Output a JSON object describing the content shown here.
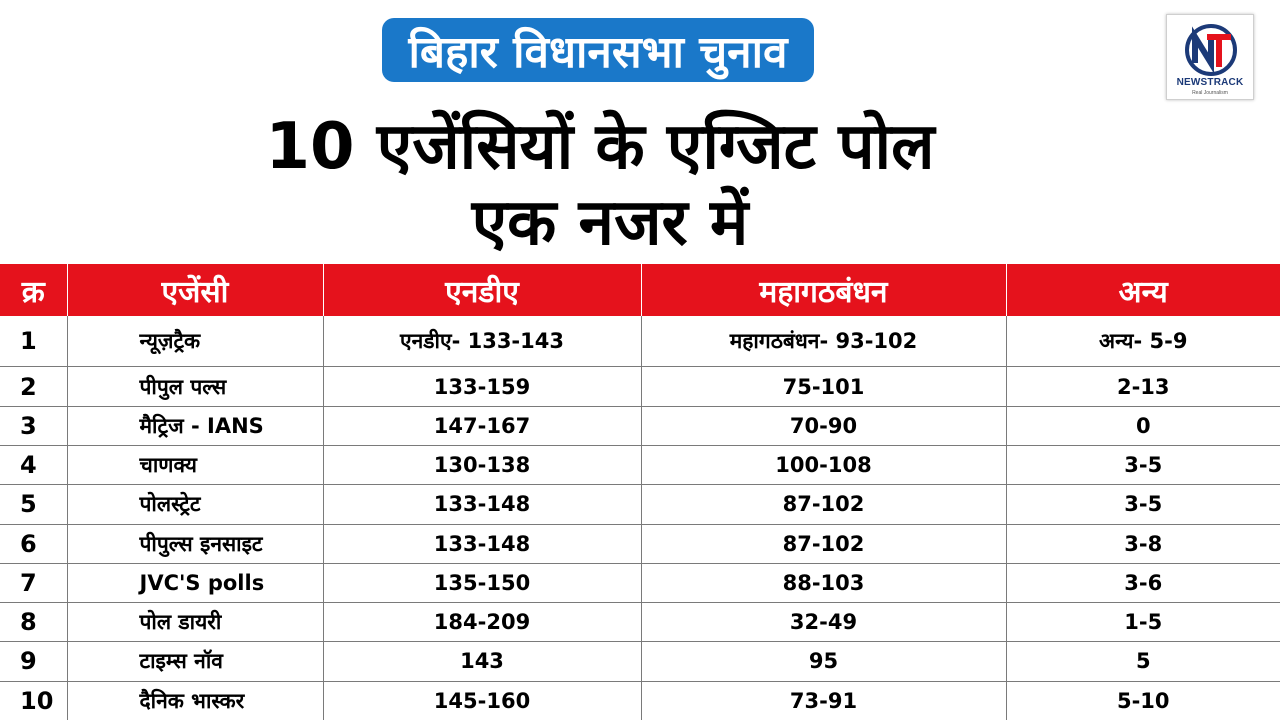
{
  "header": {
    "banner": "बिहार विधानसभा चुनाव",
    "title_line1": "10 एजेंसियों के एग्जिट पोल",
    "title_line2": "एक नजर में"
  },
  "logo": {
    "brand": "NEWSTRACK",
    "tagline": "Real Journalism",
    "letters": "NT",
    "colors": {
      "n": "#1c3a78",
      "t": "#e5121c"
    }
  },
  "table": {
    "header_color": "#e5121c",
    "headers": [
      "क्र",
      "एजेंसी",
      "एनडीए",
      "महागठबंधन",
      "अन्य"
    ],
    "rows": [
      {
        "no": "1",
        "agency": "न्यूज़ट्रैक",
        "nda": "एनडीए- 133-143",
        "mgb": "महागठबंधन- 93-102",
        "others": "अन्य-  5-9"
      },
      {
        "no": "2",
        "agency": "पीपुल पल्स",
        "nda": "133-159",
        "mgb": "75-101",
        "others": "2-13"
      },
      {
        "no": "3",
        "agency": "मैट्रिज - IANS",
        "nda": "147-167",
        "mgb": "70-90",
        "others": "0"
      },
      {
        "no": "4",
        "agency": "चाणक्य",
        "nda": "130-138",
        "mgb": "100-108",
        "others": "3-5"
      },
      {
        "no": "5",
        "agency": "पोलस्ट्रेट",
        "nda": "133-148",
        "mgb": "87-102",
        "others": "3-5"
      },
      {
        "no": "6",
        "agency": "पीपुल्स इनसाइट",
        "nda": "133-148",
        "mgb": "87-102",
        "others": "3-8"
      },
      {
        "no": "7",
        "agency": "JVC'S polls",
        "nda": "135-150",
        "mgb": "88-103",
        "others": "3-6"
      },
      {
        "no": "8",
        "agency": "पोल डायरी",
        "nda": "184-209",
        "mgb": "32-49",
        "others": "1-5"
      },
      {
        "no": "9",
        "agency": "टाइम्स नॉव",
        "nda": "143",
        "mgb": "95",
        "others": "5"
      },
      {
        "no": "10",
        "agency": "दैनिक भास्कर",
        "nda": "145-160",
        "mgb": "73-91",
        "others": "5-10"
      }
    ]
  }
}
